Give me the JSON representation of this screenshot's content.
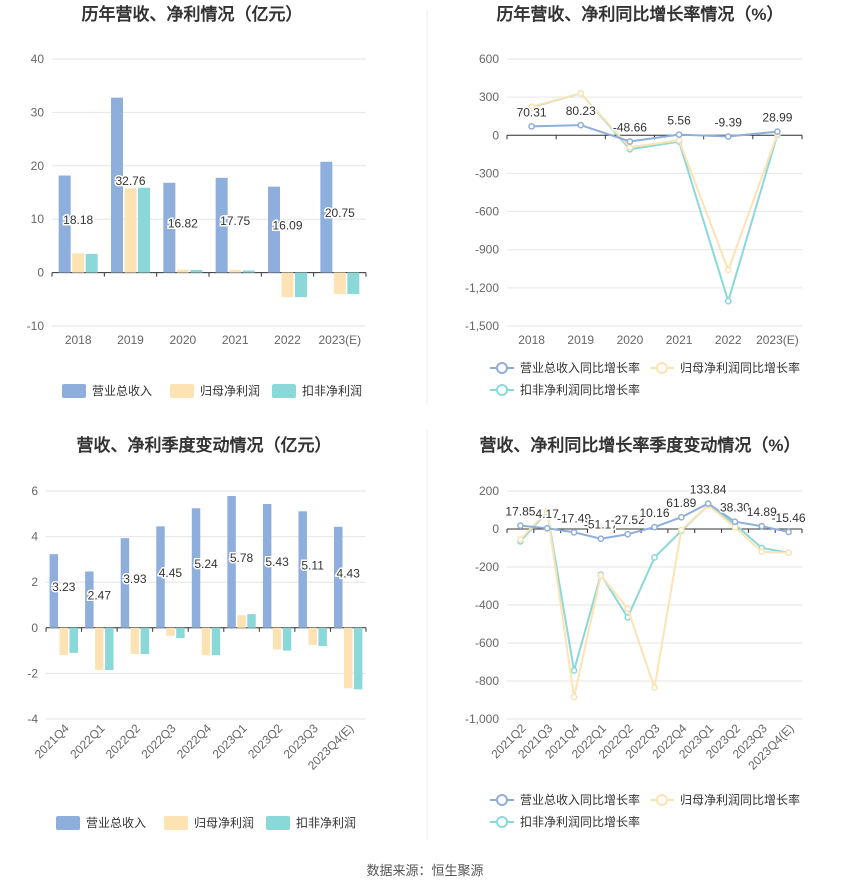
{
  "source_note": "数据来源：恒生聚源",
  "colors": {
    "revenue": "#8eaedb",
    "parent_profit": "#fde3b4",
    "deducted_profit": "#8ad8d8",
    "rev_growth": "#8eaedb",
    "parent_growth": "#fde3b4",
    "deducted_growth": "#8ad8d8",
    "grid": "#e6e6e6",
    "axis_text": "#666666"
  },
  "chart_data": [
    {
      "id": "annual-bar",
      "type": "bar",
      "title": "历年营收、净利情况（亿元）",
      "categories": [
        "2018",
        "2019",
        "2020",
        "2021",
        "2022",
        "2023(E)"
      ],
      "ylim": [
        -10,
        40
      ],
      "yticks": [
        -10,
        0,
        10,
        20,
        30,
        40
      ],
      "series": [
        {
          "name": "营业总收入",
          "values": [
            18.18,
            32.76,
            16.82,
            17.75,
            16.09,
            20.75
          ],
          "labels": [
            "18.18",
            "32.76",
            "16.82",
            "17.75",
            "16.09",
            "20.75"
          ]
        },
        {
          "name": "归母净利润",
          "values": [
            3.6,
            15.8,
            0.55,
            0.5,
            -4.6,
            -4.0
          ]
        },
        {
          "name": "扣非净利润",
          "values": [
            3.5,
            15.9,
            0.5,
            0.4,
            -4.6,
            -4.0
          ]
        }
      ]
    },
    {
      "id": "annual-line",
      "type": "line",
      "title": "历年营收、净利同比增长率情况（%）",
      "categories": [
        "2018",
        "2019",
        "2020",
        "2021",
        "2022",
        "2023(E)"
      ],
      "ylim": [
        -1500,
        600
      ],
      "yticks": [
        -1500,
        -1200,
        -900,
        -600,
        -300,
        0,
        300,
        600
      ],
      "ytick_labels": [
        "-1,500",
        "-1,200",
        "-900",
        "-600",
        "-300",
        "0",
        "300",
        "600"
      ],
      "series": [
        {
          "name": "营业总收入同比增长率",
          "values": [
            70.31,
            80.23,
            -48.66,
            5.56,
            -9.39,
            28.99
          ],
          "labels": [
            "70.31",
            "80.23",
            "-48.66",
            "5.56",
            "-9.39",
            "28.99"
          ]
        },
        {
          "name": "归母净利润同比增长率",
          "values": [
            225,
            330,
            -95,
            -40,
            -1060,
            10
          ]
        },
        {
          "name": "扣非净利润同比增长率",
          "values": [
            220,
            330,
            -110,
            -50,
            -1305,
            5
          ]
        }
      ]
    },
    {
      "id": "quarterly-bar",
      "type": "bar",
      "title": "营收、净利季度变动情况（亿元）",
      "categories": [
        "2021Q4",
        "2022Q1",
        "2022Q2",
        "2022Q3",
        "2022Q4",
        "2023Q1",
        "2023Q2",
        "2023Q3",
        "2023Q4(E)"
      ],
      "ylim": [
        -4,
        6
      ],
      "yticks": [
        -4,
        -2,
        0,
        2,
        4,
        6
      ],
      "series": [
        {
          "name": "营业总收入",
          "values": [
            3.23,
            2.47,
            3.93,
            4.45,
            5.24,
            5.78,
            5.43,
            5.11,
            4.43
          ],
          "labels": [
            "3.23",
            "2.47",
            "3.93",
            "4.45",
            "5.24",
            "5.78",
            "5.43",
            "5.11",
            "4.43"
          ]
        },
        {
          "name": "归母净利润",
          "values": [
            -1.2,
            -1.85,
            -1.15,
            -0.35,
            -1.2,
            0.55,
            -0.95,
            -0.75,
            -2.65
          ]
        },
        {
          "name": "扣非净利润",
          "values": [
            -1.1,
            -1.85,
            -1.15,
            -0.45,
            -1.2,
            0.6,
            -1.0,
            -0.8,
            -2.7
          ]
        }
      ]
    },
    {
      "id": "quarterly-line",
      "type": "line",
      "title": "营收、净利同比增长率季度变动情况（%）",
      "categories": [
        "2021Q2",
        "2021Q3",
        "2021Q4",
        "2022Q1",
        "2022Q2",
        "2022Q3",
        "2022Q4",
        "2023Q1",
        "2023Q2",
        "2023Q3",
        "2023Q4(E)"
      ],
      "ylim": [
        -1000,
        200
      ],
      "yticks": [
        -1000,
        -800,
        -600,
        -400,
        -200,
        0,
        200
      ],
      "ytick_labels": [
        "-1,000",
        "-800",
        "-600",
        "-400",
        "-200",
        "0",
        "200"
      ],
      "series": [
        {
          "name": "营业总收入同比增长率",
          "values": [
            17.85,
            4.17,
            -17.49,
            -51.17,
            -27.52,
            10.16,
            61.89,
            133.84,
            38.3,
            14.89,
            -15.46
          ],
          "labels": [
            "17.85",
            "4.17",
            "-17.49",
            "-51.17",
            "-27.52",
            "10.16",
            "61.89",
            "133.84",
            "38.30",
            "14.89",
            "-15.46"
          ]
        },
        {
          "name": "归母净利润同比增长率",
          "values": [
            -55,
            95,
            -885,
            -245,
            -420,
            -835,
            -5,
            125,
            10,
            -120,
            -125
          ]
        },
        {
          "name": "扣非净利润同比增长率",
          "values": [
            -65,
            90,
            -745,
            -240,
            -465,
            -150,
            -10,
            125,
            25,
            -100,
            -125
          ]
        }
      ]
    }
  ]
}
